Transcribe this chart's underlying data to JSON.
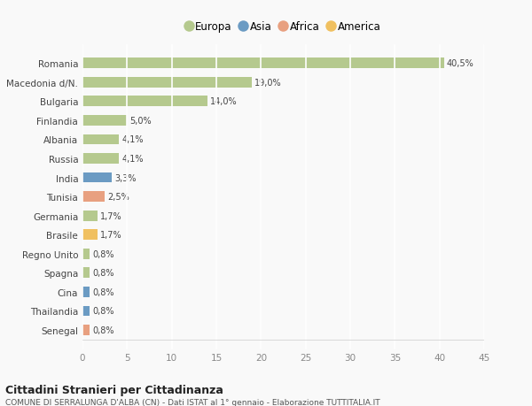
{
  "countries": [
    "Romania",
    "Macedonia d/N.",
    "Bulgaria",
    "Finlandia",
    "Albania",
    "Russia",
    "India",
    "Tunisia",
    "Germania",
    "Brasile",
    "Regno Unito",
    "Spagna",
    "Cina",
    "Thailandia",
    "Senegal"
  ],
  "values": [
    40.5,
    19.0,
    14.0,
    5.0,
    4.1,
    4.1,
    3.3,
    2.5,
    1.7,
    1.7,
    0.8,
    0.8,
    0.8,
    0.8,
    0.8
  ],
  "labels": [
    "40,5%",
    "19,0%",
    "14,0%",
    "5,0%",
    "4,1%",
    "4,1%",
    "3,3%",
    "2,5%",
    "1,7%",
    "1,7%",
    "0,8%",
    "0,8%",
    "0,8%",
    "0,8%",
    "0,8%"
  ],
  "bar_colors": [
    "#b5c98e",
    "#b5c98e",
    "#b5c98e",
    "#b5c98e",
    "#b5c98e",
    "#b5c98e",
    "#6b9bc3",
    "#e8a080",
    "#b5c98e",
    "#f0c060",
    "#b5c98e",
    "#b5c98e",
    "#6b9bc3",
    "#6b9bc3",
    "#e8a080"
  ],
  "legend_labels": [
    "Europa",
    "Asia",
    "Africa",
    "America"
  ],
  "legend_colors": [
    "#b5c98e",
    "#6b9bc3",
    "#e8a080",
    "#f0c060"
  ],
  "title": "Cittadini Stranieri per Cittadinanza",
  "subtitle": "COMUNE DI SERRALUNGA D'ALBA (CN) - Dati ISTAT al 1° gennaio - Elaborazione TUTTITALIA.IT",
  "xlim": [
    0,
    45
  ],
  "xticks": [
    0,
    5,
    10,
    15,
    20,
    25,
    30,
    35,
    40,
    45
  ],
  "background_color": "#f9f9f9",
  "grid_color": "#ffffff",
  "bar_height": 0.55
}
